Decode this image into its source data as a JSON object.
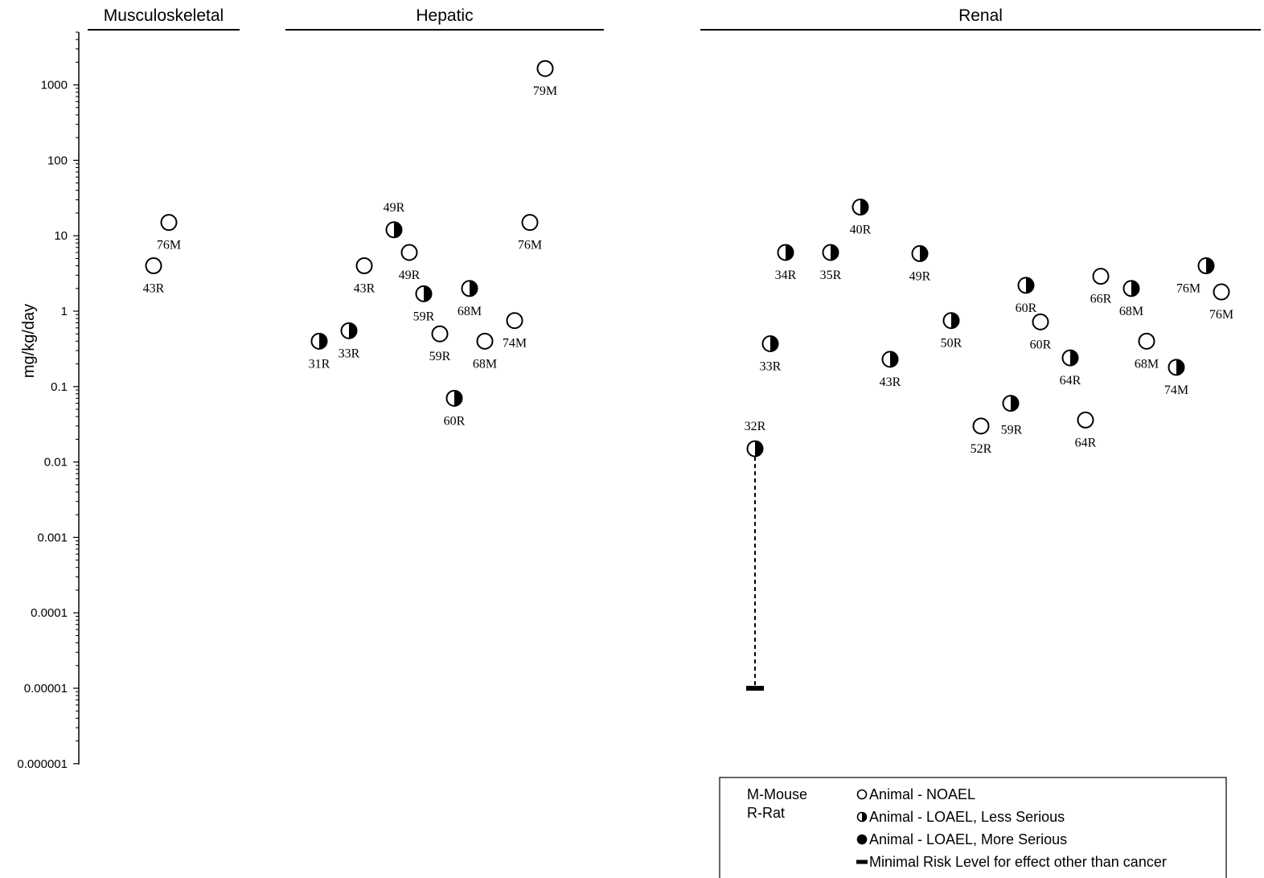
{
  "chart_data": {
    "type": "scatter",
    "ylabel": "mg/kg/day",
    "yscale": "log",
    "ylim": [
      1e-06,
      5000
    ],
    "y_ticks": [
      "1000",
      "100",
      "10",
      "1",
      "0.1",
      "0.01",
      "0.001",
      "0.0001",
      "0.00001",
      "0.000001"
    ],
    "categories": [
      "Musculoskeletal",
      "Hepatic",
      "Renal"
    ],
    "points": [
      {
        "category": "Musculoskeletal",
        "label": "76M",
        "value": 15,
        "effect": "noael"
      },
      {
        "category": "Musculoskeletal",
        "label": "43R",
        "value": 4,
        "effect": "noael"
      },
      {
        "category": "Hepatic",
        "label": "31R",
        "value": 0.4,
        "effect": "loael_less"
      },
      {
        "category": "Hepatic",
        "label": "33R",
        "value": 0.55,
        "effect": "loael_less"
      },
      {
        "category": "Hepatic",
        "label": "43R",
        "value": 4,
        "effect": "noael"
      },
      {
        "category": "Hepatic",
        "label": "49R",
        "value": 12,
        "effect": "loael_less"
      },
      {
        "category": "Hepatic",
        "label": "49R",
        "value": 6,
        "effect": "noael"
      },
      {
        "category": "Hepatic",
        "label": "59R",
        "value": 1.7,
        "effect": "loael_less"
      },
      {
        "category": "Hepatic",
        "label": "59R",
        "value": 0.5,
        "effect": "noael"
      },
      {
        "category": "Hepatic",
        "label": "60R",
        "value": 0.07,
        "effect": "loael_less"
      },
      {
        "category": "Hepatic",
        "label": "68M",
        "value": 2,
        "effect": "loael_less"
      },
      {
        "category": "Hepatic",
        "label": "68M",
        "value": 0.4,
        "effect": "noael"
      },
      {
        "category": "Hepatic",
        "label": "74M",
        "value": 0.75,
        "effect": "noael"
      },
      {
        "category": "Hepatic",
        "label": "76M",
        "value": 15,
        "effect": "noael"
      },
      {
        "category": "Hepatic",
        "label": "79M",
        "value": 1650,
        "effect": "noael"
      },
      {
        "category": "Renal",
        "label": "32R",
        "value": 0.015,
        "effect": "loael_less",
        "mrl": 1e-05
      },
      {
        "category": "Renal",
        "label": "33R",
        "value": 0.37,
        "effect": "loael_less"
      },
      {
        "category": "Renal",
        "label": "34R",
        "value": 6,
        "effect": "loael_less"
      },
      {
        "category": "Renal",
        "label": "35R",
        "value": 6,
        "effect": "loael_less"
      },
      {
        "category": "Renal",
        "label": "40R",
        "value": 24,
        "effect": "loael_less"
      },
      {
        "category": "Renal",
        "label": "43R",
        "value": 0.23,
        "effect": "loael_less"
      },
      {
        "category": "Renal",
        "label": "49R",
        "value": 5.8,
        "effect": "loael_less"
      },
      {
        "category": "Renal",
        "label": "50R",
        "value": 0.75,
        "effect": "loael_less"
      },
      {
        "category": "Renal",
        "label": "52R",
        "value": 0.03,
        "effect": "noael"
      },
      {
        "category": "Renal",
        "label": "59R",
        "value": 0.06,
        "effect": "loael_less"
      },
      {
        "category": "Renal",
        "label": "60R",
        "value": 2.2,
        "effect": "loael_less"
      },
      {
        "category": "Renal",
        "label": "60R",
        "value": 0.72,
        "effect": "noael"
      },
      {
        "category": "Renal",
        "label": "64R",
        "value": 0.24,
        "effect": "loael_less"
      },
      {
        "category": "Renal",
        "label": "64R",
        "value": 0.036,
        "effect": "noael"
      },
      {
        "category": "Renal",
        "label": "66R",
        "value": 2.9,
        "effect": "noael"
      },
      {
        "category": "Renal",
        "label": "68M",
        "value": 2,
        "effect": "loael_less"
      },
      {
        "category": "Renal",
        "label": "68M",
        "value": 0.4,
        "effect": "noael"
      },
      {
        "category": "Renal",
        "label": "74M",
        "value": 0.18,
        "effect": "loael_less"
      },
      {
        "category": "Renal",
        "label": "76M",
        "value": 4,
        "effect": "loael_less"
      },
      {
        "category": "Renal",
        "label": "76M",
        "value": 1.8,
        "effect": "noael"
      }
    ],
    "legend": {
      "placement": "bottom-right",
      "species": [
        "M-Mouse",
        "R-Rat"
      ],
      "entries": [
        {
          "symbol": "noael",
          "text": "Animal - NOAEL"
        },
        {
          "symbol": "loael_less",
          "text": "Animal - LOAEL, Less Serious"
        },
        {
          "symbol": "loael_more",
          "text": "Animal - LOAEL, More Serious"
        },
        {
          "symbol": "mrl",
          "text": "Minimal Risk Level for effect other than cancer"
        }
      ]
    }
  }
}
